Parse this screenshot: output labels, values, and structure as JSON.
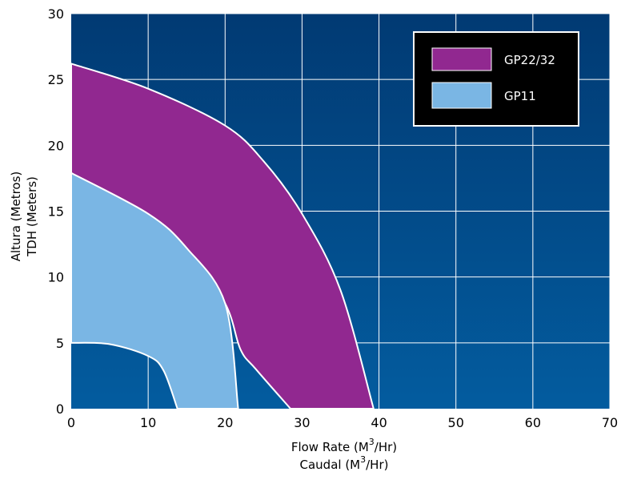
{
  "chart_data": {
    "type": "area",
    "xlabel_line1": "Flow Rate (M",
    "xlabel_line2": "Caudal (M",
    "xlabel_unit_sup": "3",
    "xlabel_unit_tail": "/Hr)",
    "ylabel_line1": "Altura (Metros)",
    "ylabel_line2": "TDH (Meters)",
    "xlim": [
      0,
      70
    ],
    "ylim": [
      0,
      30
    ],
    "x_ticks": [
      "0",
      "10",
      "20",
      "30",
      "40",
      "50",
      "60",
      "70"
    ],
    "y_ticks": [
      "0",
      "5",
      "10",
      "15",
      "20",
      "25",
      "30"
    ],
    "grid": true,
    "legend_position": "top-right",
    "background_gradient": [
      "#013a73",
      "#035c9f"
    ],
    "series": [
      {
        "name": "GP22/32",
        "color": "#912890",
        "upper": [
          [
            0,
            26.2
          ],
          [
            10,
            24.3
          ],
          [
            20,
            21.5
          ],
          [
            25,
            18.8
          ],
          [
            30,
            14.8
          ],
          [
            35,
            9.0
          ],
          [
            39.3,
            0
          ]
        ],
        "lower": [
          [
            0,
            17.9
          ],
          [
            10,
            14.8
          ],
          [
            15,
            12.2
          ],
          [
            20,
            8.0
          ],
          [
            22,
            4.5
          ],
          [
            24,
            3.0
          ],
          [
            28.5,
            0
          ]
        ]
      },
      {
        "name": "GP11",
        "color": "#7ab6e4",
        "upper": [
          [
            0,
            17.9
          ],
          [
            10,
            14.8
          ],
          [
            15,
            12.2
          ],
          [
            20,
            8.0
          ],
          [
            21.7,
            0
          ]
        ],
        "lower": [
          [
            0,
            5.0
          ],
          [
            5,
            4.9
          ],
          [
            10,
            4.0
          ],
          [
            12,
            2.9
          ],
          [
            13.8,
            0
          ]
        ]
      }
    ]
  }
}
